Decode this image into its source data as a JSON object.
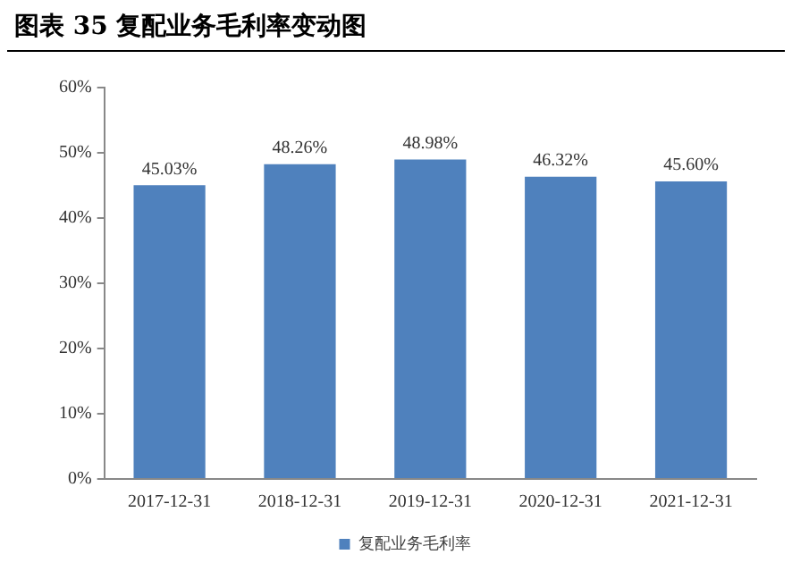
{
  "chart_data": {
    "type": "bar",
    "title": "图表 35 复配业务毛利率变动图",
    "categories": [
      "2017-12-31",
      "2018-12-31",
      "2019-12-31",
      "2020-12-31",
      "2021-12-31"
    ],
    "series": [
      {
        "name": "复配业务毛利率",
        "color": "#4f81bd",
        "values": [
          45.03,
          48.26,
          48.98,
          46.32,
          45.6
        ],
        "value_labels": [
          "45.03%",
          "48.26%",
          "48.98%",
          "46.32%",
          "45.60%"
        ]
      }
    ],
    "ylim": [
      0,
      60
    ],
    "yticks": [
      {
        "value": 0,
        "label": "0%"
      },
      {
        "value": 10,
        "label": "10%"
      },
      {
        "value": 20,
        "label": "20%"
      },
      {
        "value": 30,
        "label": "30%"
      },
      {
        "value": 40,
        "label": "40%"
      },
      {
        "value": 50,
        "label": "50%"
      },
      {
        "value": 60,
        "label": "60%"
      }
    ],
    "grid": false,
    "legend": "bottom"
  }
}
